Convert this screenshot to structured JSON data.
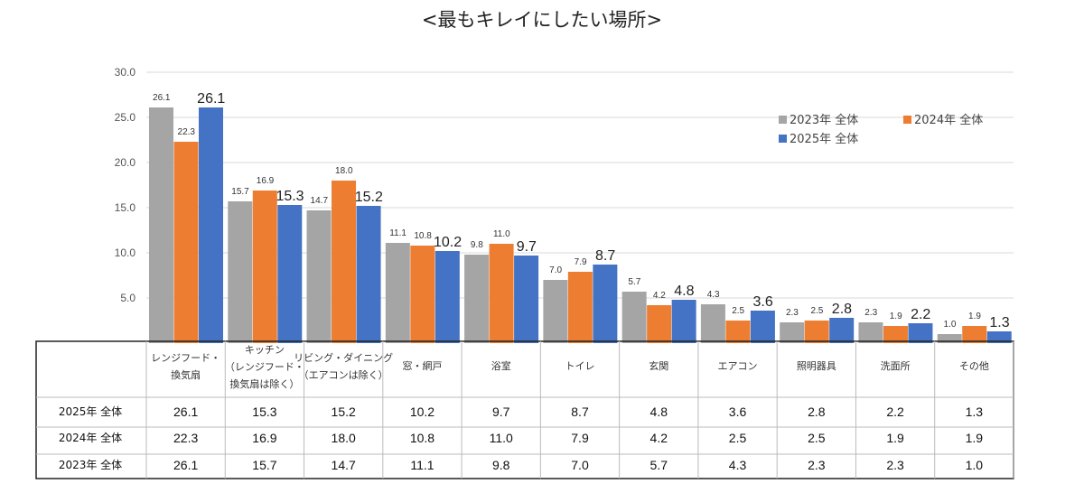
{
  "chart_data": {
    "type": "bar",
    "title": "<最もキレイにしたい場所>",
    "categories": [
      [
        "レンジフード・",
        "換気扇"
      ],
      [
        "キッチン",
        "（レンジフード・",
        "換気扇は除く）"
      ],
      [
        "リビング・ダイニング",
        "（エアコンは除く）"
      ],
      [
        "窓・網戸"
      ],
      [
        "浴室"
      ],
      [
        "トイレ"
      ],
      [
        "玄関"
      ],
      [
        "エアコン"
      ],
      [
        "照明器具"
      ],
      [
        "洗面所"
      ],
      [
        "その他"
      ]
    ],
    "series": [
      {
        "name": "2023年 全体",
        "color": "#A5A5A5",
        "values": [
          26.1,
          15.7,
          14.7,
          11.1,
          9.8,
          7.0,
          5.7,
          4.3,
          2.3,
          2.3,
          1.0
        ]
      },
      {
        "name": "2024年 全体",
        "color": "#ED7D31",
        "values": [
          22.3,
          16.9,
          18.0,
          10.8,
          11.0,
          7.9,
          4.2,
          2.5,
          2.5,
          1.9,
          1.9
        ]
      },
      {
        "name": "2025年 全体",
        "color": "#4472C4",
        "values": [
          26.1,
          15.3,
          15.2,
          10.2,
          9.7,
          8.7,
          4.8,
          3.6,
          2.8,
          2.2,
          1.3
        ]
      }
    ],
    "ylim": [
      0,
      30
    ],
    "yticks": [
      "5.0",
      "10.0",
      "15.0",
      "20.0",
      "25.0",
      "30.0"
    ],
    "grid": true,
    "legend": "top-right",
    "table_rows": [
      "2025年 全体",
      "2024年 全体",
      "2023年 全体"
    ]
  }
}
